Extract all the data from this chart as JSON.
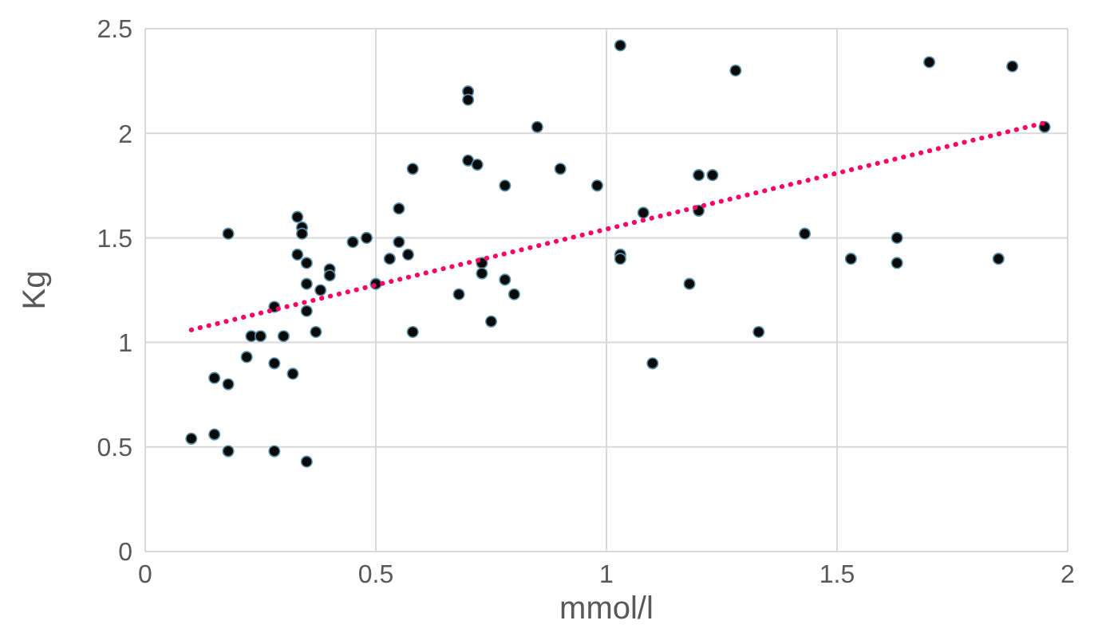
{
  "chart_data": {
    "type": "scatter",
    "xlabel": "mmol/l",
    "ylabel": "Kg",
    "xlim": [
      0,
      2
    ],
    "xticks": [
      0,
      0.5,
      1,
      1.5,
      2
    ],
    "ylim": [
      0,
      2.5
    ],
    "yticks": [
      0,
      0.5,
      1,
      1.5,
      2,
      2.5
    ],
    "grid": true,
    "legend": false,
    "series": [
      {
        "color": "#0a0a0a",
        "marker": "circle",
        "x": [
          0.1,
          0.15,
          0.15,
          0.18,
          0.18,
          0.18,
          0.22,
          0.23,
          0.25,
          0.28,
          0.28,
          0.28,
          0.3,
          0.32,
          0.33,
          0.33,
          0.34,
          0.34,
          0.35,
          0.35,
          0.35,
          0.35,
          0.37,
          0.38,
          0.4,
          0.4,
          0.45,
          0.48,
          0.5,
          0.53,
          0.55,
          0.55,
          0.57,
          0.58,
          0.58,
          0.68,
          0.7,
          0.7,
          0.7,
          0.72,
          0.73,
          0.73,
          0.75,
          0.78,
          0.78,
          0.8,
          0.85,
          0.9,
          0.98,
          1.03,
          1.03,
          1.03,
          1.08,
          1.1,
          1.18,
          1.2,
          1.2,
          1.23,
          1.28,
          1.33,
          1.43,
          1.53,
          1.63,
          1.63,
          1.7,
          1.85,
          1.88,
          1.95
        ],
        "values": [
          0.54,
          0.56,
          0.83,
          0.8,
          0.48,
          1.52,
          0.93,
          1.03,
          1.03,
          1.17,
          0.9,
          0.48,
          1.03,
          0.85,
          1.6,
          1.42,
          1.55,
          1.52,
          1.38,
          1.28,
          1.15,
          0.43,
          1.05,
          1.25,
          1.35,
          1.32,
          1.48,
          1.5,
          1.28,
          1.4,
          1.64,
          1.48,
          1.42,
          1.83,
          1.05,
          1.23,
          2.2,
          2.16,
          1.87,
          1.85,
          1.38,
          1.33,
          1.1,
          1.75,
          1.3,
          1.23,
          2.03,
          1.83,
          1.75,
          2.42,
          1.42,
          1.4,
          1.62,
          0.9,
          1.28,
          1.8,
          1.63,
          1.8,
          2.3,
          1.05,
          1.52,
          1.4,
          1.5,
          1.38,
          2.34,
          1.4,
          2.32,
          2.03
        ]
      },
      {
        "type": "line",
        "color": "#ff0066",
        "line_style": "dotted",
        "marker": "none",
        "x": [
          0.1,
          1.95
        ],
        "values": [
          1.06,
          2.05
        ]
      }
    ]
  }
}
